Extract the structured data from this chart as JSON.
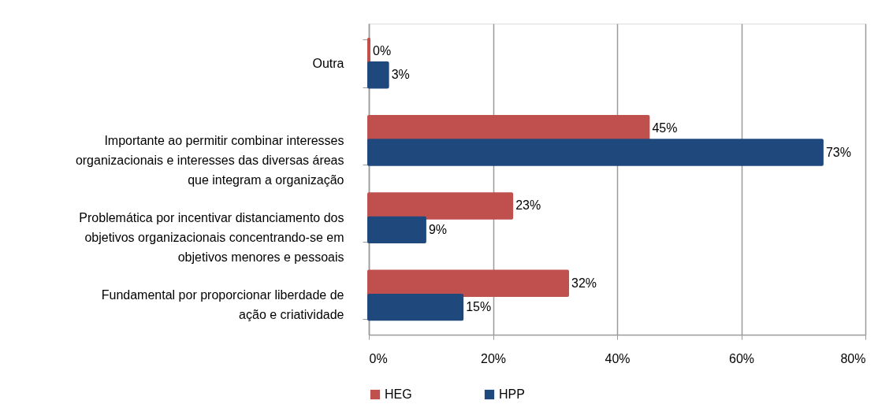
{
  "chart_data": {
    "type": "bar",
    "orientation": "horizontal",
    "categories": [
      "Outra",
      "Importante ao permitir combinar interesses\norganizacionais e interesses das diversas áreas\nque integram a organização",
      "Problemática por incentivar distanciamento dos\nobjetivos organizacionais concentrando-se em\nobjetivos menores e pessoais",
      "Fundamental por proporcionar liberdade de\nação e criatividade"
    ],
    "series": [
      {
        "name": "HEG",
        "color": "#c0504d",
        "values": [
          0,
          45,
          23,
          32
        ],
        "value_labels": [
          "0%",
          "45%",
          "23%",
          "32%"
        ]
      },
      {
        "name": "HPP",
        "color": "#1f497d",
        "values": [
          3,
          73,
          9,
          15
        ],
        "value_labels": [
          "3%",
          "73%",
          "9%",
          "15%"
        ]
      }
    ],
    "xlim": [
      0,
      80
    ],
    "xticks": [
      {
        "value": 0,
        "label": "0%"
      },
      {
        "value": 20,
        "label": "20%"
      },
      {
        "value": 40,
        "label": "40%"
      },
      {
        "value": 60,
        "label": "60%"
      },
      {
        "value": 80,
        "label": "80%"
      }
    ],
    "grid": "x",
    "legend": "bottom"
  }
}
